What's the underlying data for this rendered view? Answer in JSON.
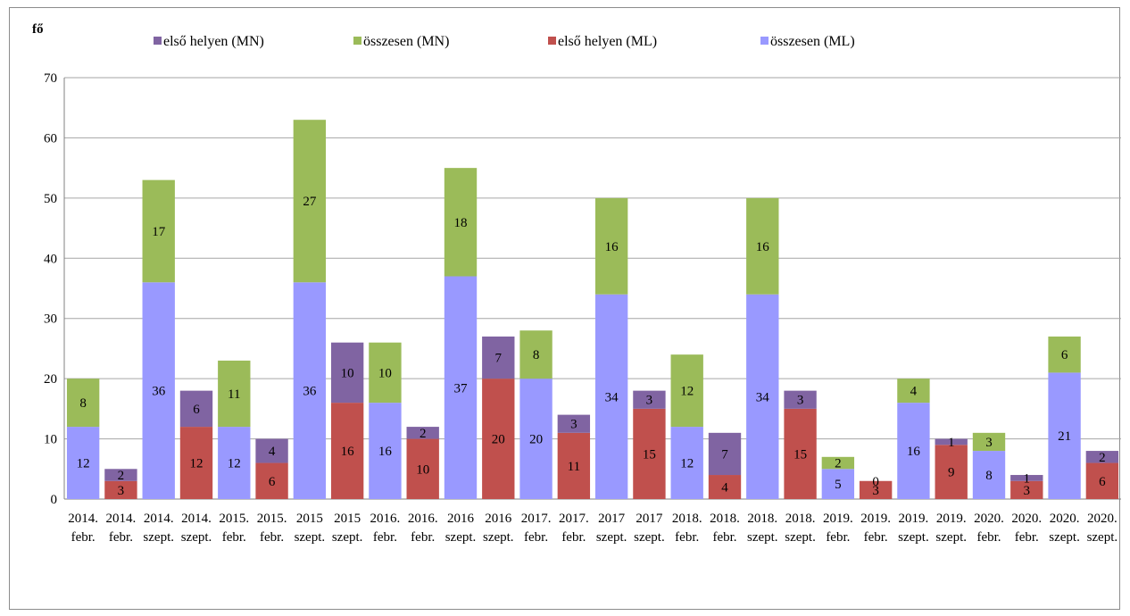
{
  "chart_data": {
    "type": "bar",
    "stacked": true,
    "ylabel": "fő",
    "ylim": [
      0,
      70
    ],
    "yticks": [
      0,
      10,
      20,
      30,
      40,
      50,
      60,
      70
    ],
    "grid": true,
    "legend_position": "top",
    "categories": [
      [
        "2014.",
        "febr."
      ],
      [
        "2014.",
        "febr."
      ],
      [
        "2014.",
        "szept."
      ],
      [
        "2014.",
        "szept."
      ],
      [
        "2015.",
        "febr."
      ],
      [
        "2015.",
        "febr."
      ],
      [
        "2015",
        "szept."
      ],
      [
        "2015",
        "szept."
      ],
      [
        "2016.",
        "febr."
      ],
      [
        "2016.",
        "febr."
      ],
      [
        "2016",
        "szept."
      ],
      [
        "2016",
        "szept."
      ],
      [
        "2017.",
        "febr."
      ],
      [
        "2017.",
        "febr."
      ],
      [
        "2017",
        "szept."
      ],
      [
        "2017",
        "szept."
      ],
      [
        "2018.",
        "febr."
      ],
      [
        "2018.",
        "febr."
      ],
      [
        "2018.",
        "szept."
      ],
      [
        "2018.",
        "szept."
      ],
      [
        "2019.",
        "febr."
      ],
      [
        "2019.",
        "febr."
      ],
      [
        "2019.",
        "szept."
      ],
      [
        "2019.",
        "szept."
      ],
      [
        "2020.",
        "febr."
      ],
      [
        "2020.",
        "febr."
      ],
      [
        "2020.",
        "szept."
      ],
      [
        "2020.",
        "szept."
      ]
    ],
    "legend": [
      {
        "name": "első helyen (MN)",
        "color": "#8064A2"
      },
      {
        "name": "összesen (MN)",
        "color": "#9BBB59"
      },
      {
        "name": "első helyen (ML)",
        "color": "#C0504D"
      },
      {
        "name": "összesen  (ML)",
        "color": "#9999FF"
      }
    ],
    "bars": [
      {
        "segments": [
          {
            "series": 3,
            "value": 12
          },
          {
            "series": 1,
            "value": 8
          }
        ]
      },
      {
        "segments": [
          {
            "series": 2,
            "value": 3
          },
          {
            "series": 0,
            "value": 2
          }
        ]
      },
      {
        "segments": [
          {
            "series": 3,
            "value": 36
          },
          {
            "series": 1,
            "value": 17
          }
        ]
      },
      {
        "segments": [
          {
            "series": 2,
            "value": 12
          },
          {
            "series": 0,
            "value": 6
          }
        ]
      },
      {
        "segments": [
          {
            "series": 3,
            "value": 12
          },
          {
            "series": 1,
            "value": 11
          }
        ]
      },
      {
        "segments": [
          {
            "series": 2,
            "value": 6
          },
          {
            "series": 0,
            "value": 4
          }
        ]
      },
      {
        "segments": [
          {
            "series": 3,
            "value": 36
          },
          {
            "series": 1,
            "value": 27
          }
        ]
      },
      {
        "segments": [
          {
            "series": 2,
            "value": 16
          },
          {
            "series": 0,
            "value": 10
          }
        ]
      },
      {
        "segments": [
          {
            "series": 3,
            "value": 16
          },
          {
            "series": 1,
            "value": 10
          }
        ]
      },
      {
        "segments": [
          {
            "series": 2,
            "value": 10
          },
          {
            "series": 0,
            "value": 2
          }
        ]
      },
      {
        "segments": [
          {
            "series": 3,
            "value": 37
          },
          {
            "series": 1,
            "value": 18
          }
        ]
      },
      {
        "segments": [
          {
            "series": 2,
            "value": 20
          },
          {
            "series": 0,
            "value": 7
          }
        ]
      },
      {
        "segments": [
          {
            "series": 3,
            "value": 20
          },
          {
            "series": 1,
            "value": 8
          }
        ]
      },
      {
        "segments": [
          {
            "series": 2,
            "value": 11
          },
          {
            "series": 0,
            "value": 3
          }
        ]
      },
      {
        "segments": [
          {
            "series": 3,
            "value": 34
          },
          {
            "series": 1,
            "value": 16
          }
        ]
      },
      {
        "segments": [
          {
            "series": 2,
            "value": 15
          },
          {
            "series": 0,
            "value": 3
          }
        ]
      },
      {
        "segments": [
          {
            "series": 3,
            "value": 12
          },
          {
            "series": 1,
            "value": 12
          }
        ]
      },
      {
        "segments": [
          {
            "series": 2,
            "value": 4
          },
          {
            "series": 0,
            "value": 7
          }
        ]
      },
      {
        "segments": [
          {
            "series": 3,
            "value": 34
          },
          {
            "series": 1,
            "value": 16
          }
        ]
      },
      {
        "segments": [
          {
            "series": 2,
            "value": 15
          },
          {
            "series": 0,
            "value": 3
          }
        ]
      },
      {
        "segments": [
          {
            "series": 3,
            "value": 5
          },
          {
            "series": 1,
            "value": 2
          }
        ]
      },
      {
        "segments": [
          {
            "series": 2,
            "value": 3
          },
          {
            "series": 0,
            "value": 0
          }
        ]
      },
      {
        "segments": [
          {
            "series": 3,
            "value": 16
          },
          {
            "series": 1,
            "value": 4
          }
        ]
      },
      {
        "segments": [
          {
            "series": 2,
            "value": 9
          },
          {
            "series": 0,
            "value": 1
          }
        ]
      },
      {
        "segments": [
          {
            "series": 3,
            "value": 8
          },
          {
            "series": 1,
            "value": 3
          }
        ]
      },
      {
        "segments": [
          {
            "series": 2,
            "value": 3
          },
          {
            "series": 0,
            "value": 1
          }
        ]
      },
      {
        "segments": [
          {
            "series": 3,
            "value": 21
          },
          {
            "series": 1,
            "value": 6
          }
        ]
      },
      {
        "segments": [
          {
            "series": 2,
            "value": 6
          },
          {
            "series": 0,
            "value": 2
          }
        ]
      }
    ]
  }
}
